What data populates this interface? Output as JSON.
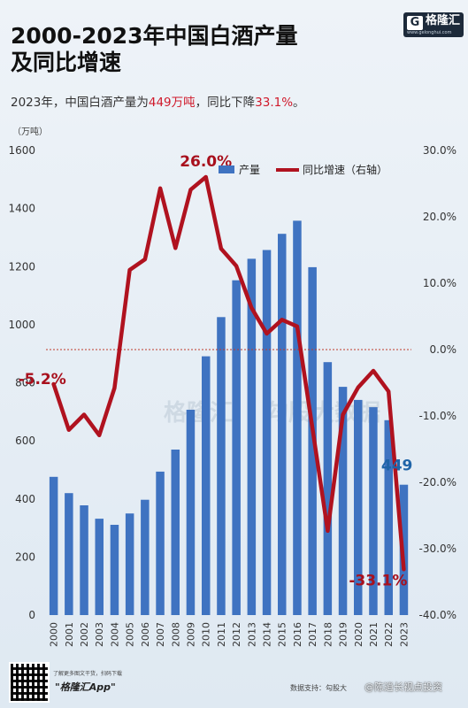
{
  "title": "2000-2023年中国白酒产量\n及同比增速",
  "subtitle": {
    "prefix": "2023年，中国白酒产量为",
    "value": "449万吨",
    "middle": "，同比下降",
    "change": "33.1%",
    "suffix": "。"
  },
  "brand": {
    "mark": "G",
    "name": "格隆汇",
    "url": "www.gelonghui.com"
  },
  "watermark": "格隆汇",
  "watermark2": "勾股大数据",
  "footer": {
    "scan_text": "了解更多图文干货，扫码下载",
    "app_name": "\"格隆汇App\"",
    "source": "数据支持：勾股大",
    "credit": "@陈逍长视点投资"
  },
  "chart_data": {
    "type": "bar+line",
    "categories": [
      "2000",
      "2001",
      "2002",
      "2003",
      "2004",
      "2005",
      "2006",
      "2007",
      "2008",
      "2009",
      "2010",
      "2011",
      "2012",
      "2013",
      "2014",
      "2015",
      "2016",
      "2017",
      "2018",
      "2019",
      "2020",
      "2021",
      "2022",
      "2023"
    ],
    "series": [
      {
        "name": "产量",
        "type": "bar",
        "axis": "left",
        "color": "#3f73c1",
        "values": [
          476,
          420,
          378,
          332,
          311,
          350,
          397,
          494,
          570,
          707,
          891,
          1026,
          1153,
          1227,
          1257,
          1313,
          1358,
          1198,
          871,
          786,
          741,
          716,
          671,
          449
        ]
      },
      {
        "name": "同比增速（右轴）",
        "type": "line",
        "axis": "right",
        "color": "#b0121f",
        "values": [
          -5.2,
          -12.1,
          -9.8,
          -12.9,
          -5.8,
          12.0,
          13.6,
          24.3,
          15.3,
          24.1,
          26.0,
          15.2,
          12.6,
          6.3,
          2.4,
          4.5,
          3.5,
          -11.8,
          -27.3,
          -9.8,
          -5.7,
          -3.2,
          -6.3,
          -33.1
        ]
      }
    ],
    "ylabel_left": "（万吨）",
    "ylim_left": [
      0,
      1600
    ],
    "yticks_left": [
      0,
      200,
      400,
      600,
      800,
      1000,
      1200,
      1400,
      1600
    ],
    "ylim_right": [
      -40,
      30
    ],
    "yticks_right": [
      "30.0%",
      "20.0%",
      "10.0%",
      "0.0%",
      "-10.0%",
      "-20.0%",
      "-30.0%",
      "-40.0%"
    ],
    "data_labels": [
      {
        "series": 1,
        "index": 10,
        "text": "26.0%"
      },
      {
        "series": 1,
        "index": 0,
        "text": "-5.2%"
      },
      {
        "series": 1,
        "index": 23,
        "text": "-33.1%"
      },
      {
        "series": 0,
        "index": 23,
        "text": "449"
      }
    ],
    "legend": [
      "产量",
      "同比增速（右轴）"
    ],
    "legend_position": "top-right",
    "zero_line_right": true,
    "grid": false
  }
}
